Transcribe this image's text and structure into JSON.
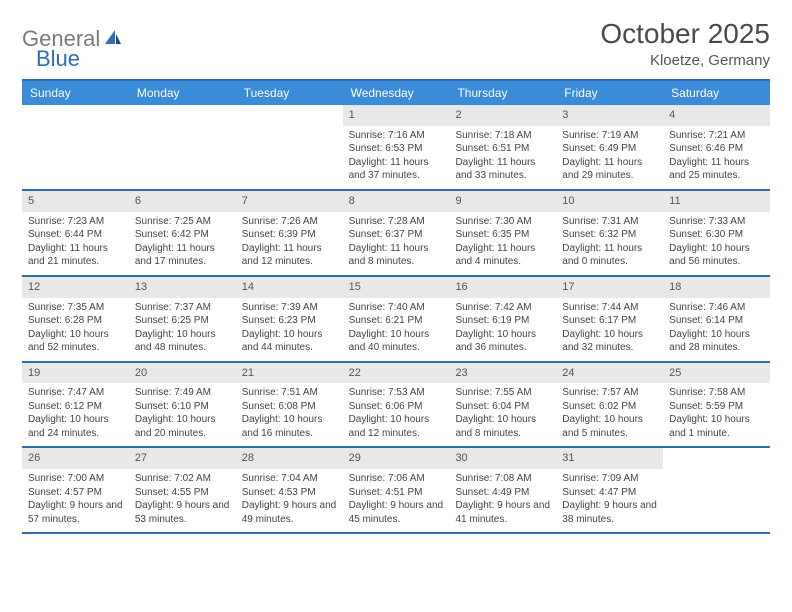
{
  "brand": {
    "part1": "General",
    "part2": "Blue"
  },
  "title": "October 2025",
  "location": "Kloetze, Germany",
  "colors": {
    "header_bg": "#3a8bd8",
    "border": "#2d6db3",
    "daynum_bg": "#e8e8e8",
    "text": "#444444"
  },
  "dayNames": [
    "Sunday",
    "Monday",
    "Tuesday",
    "Wednesday",
    "Thursday",
    "Friday",
    "Saturday"
  ],
  "weeks": [
    [
      {
        "empty": true
      },
      {
        "empty": true
      },
      {
        "empty": true
      },
      {
        "num": "1",
        "sunrise": "7:16 AM",
        "sunset": "6:53 PM",
        "daylight": "11 hours and 37 minutes."
      },
      {
        "num": "2",
        "sunrise": "7:18 AM",
        "sunset": "6:51 PM",
        "daylight": "11 hours and 33 minutes."
      },
      {
        "num": "3",
        "sunrise": "7:19 AM",
        "sunset": "6:49 PM",
        "daylight": "11 hours and 29 minutes."
      },
      {
        "num": "4",
        "sunrise": "7:21 AM",
        "sunset": "6:46 PM",
        "daylight": "11 hours and 25 minutes."
      }
    ],
    [
      {
        "num": "5",
        "sunrise": "7:23 AM",
        "sunset": "6:44 PM",
        "daylight": "11 hours and 21 minutes."
      },
      {
        "num": "6",
        "sunrise": "7:25 AM",
        "sunset": "6:42 PM",
        "daylight": "11 hours and 17 minutes."
      },
      {
        "num": "7",
        "sunrise": "7:26 AM",
        "sunset": "6:39 PM",
        "daylight": "11 hours and 12 minutes."
      },
      {
        "num": "8",
        "sunrise": "7:28 AM",
        "sunset": "6:37 PM",
        "daylight": "11 hours and 8 minutes."
      },
      {
        "num": "9",
        "sunrise": "7:30 AM",
        "sunset": "6:35 PM",
        "daylight": "11 hours and 4 minutes."
      },
      {
        "num": "10",
        "sunrise": "7:31 AM",
        "sunset": "6:32 PM",
        "daylight": "11 hours and 0 minutes."
      },
      {
        "num": "11",
        "sunrise": "7:33 AM",
        "sunset": "6:30 PM",
        "daylight": "10 hours and 56 minutes."
      }
    ],
    [
      {
        "num": "12",
        "sunrise": "7:35 AM",
        "sunset": "6:28 PM",
        "daylight": "10 hours and 52 minutes."
      },
      {
        "num": "13",
        "sunrise": "7:37 AM",
        "sunset": "6:25 PM",
        "daylight": "10 hours and 48 minutes."
      },
      {
        "num": "14",
        "sunrise": "7:39 AM",
        "sunset": "6:23 PM",
        "daylight": "10 hours and 44 minutes."
      },
      {
        "num": "15",
        "sunrise": "7:40 AM",
        "sunset": "6:21 PM",
        "daylight": "10 hours and 40 minutes."
      },
      {
        "num": "16",
        "sunrise": "7:42 AM",
        "sunset": "6:19 PM",
        "daylight": "10 hours and 36 minutes."
      },
      {
        "num": "17",
        "sunrise": "7:44 AM",
        "sunset": "6:17 PM",
        "daylight": "10 hours and 32 minutes."
      },
      {
        "num": "18",
        "sunrise": "7:46 AM",
        "sunset": "6:14 PM",
        "daylight": "10 hours and 28 minutes."
      }
    ],
    [
      {
        "num": "19",
        "sunrise": "7:47 AM",
        "sunset": "6:12 PM",
        "daylight": "10 hours and 24 minutes."
      },
      {
        "num": "20",
        "sunrise": "7:49 AM",
        "sunset": "6:10 PM",
        "daylight": "10 hours and 20 minutes."
      },
      {
        "num": "21",
        "sunrise": "7:51 AM",
        "sunset": "6:08 PM",
        "daylight": "10 hours and 16 minutes."
      },
      {
        "num": "22",
        "sunrise": "7:53 AM",
        "sunset": "6:06 PM",
        "daylight": "10 hours and 12 minutes."
      },
      {
        "num": "23",
        "sunrise": "7:55 AM",
        "sunset": "6:04 PM",
        "daylight": "10 hours and 8 minutes."
      },
      {
        "num": "24",
        "sunrise": "7:57 AM",
        "sunset": "6:02 PM",
        "daylight": "10 hours and 5 minutes."
      },
      {
        "num": "25",
        "sunrise": "7:58 AM",
        "sunset": "5:59 PM",
        "daylight": "10 hours and 1 minute."
      }
    ],
    [
      {
        "num": "26",
        "sunrise": "7:00 AM",
        "sunset": "4:57 PM",
        "daylight": "9 hours and 57 minutes."
      },
      {
        "num": "27",
        "sunrise": "7:02 AM",
        "sunset": "4:55 PM",
        "daylight": "9 hours and 53 minutes."
      },
      {
        "num": "28",
        "sunrise": "7:04 AM",
        "sunset": "4:53 PM",
        "daylight": "9 hours and 49 minutes."
      },
      {
        "num": "29",
        "sunrise": "7:06 AM",
        "sunset": "4:51 PM",
        "daylight": "9 hours and 45 minutes."
      },
      {
        "num": "30",
        "sunrise": "7:08 AM",
        "sunset": "4:49 PM",
        "daylight": "9 hours and 41 minutes."
      },
      {
        "num": "31",
        "sunrise": "7:09 AM",
        "sunset": "4:47 PM",
        "daylight": "9 hours and 38 minutes."
      },
      {
        "empty": true
      }
    ]
  ]
}
